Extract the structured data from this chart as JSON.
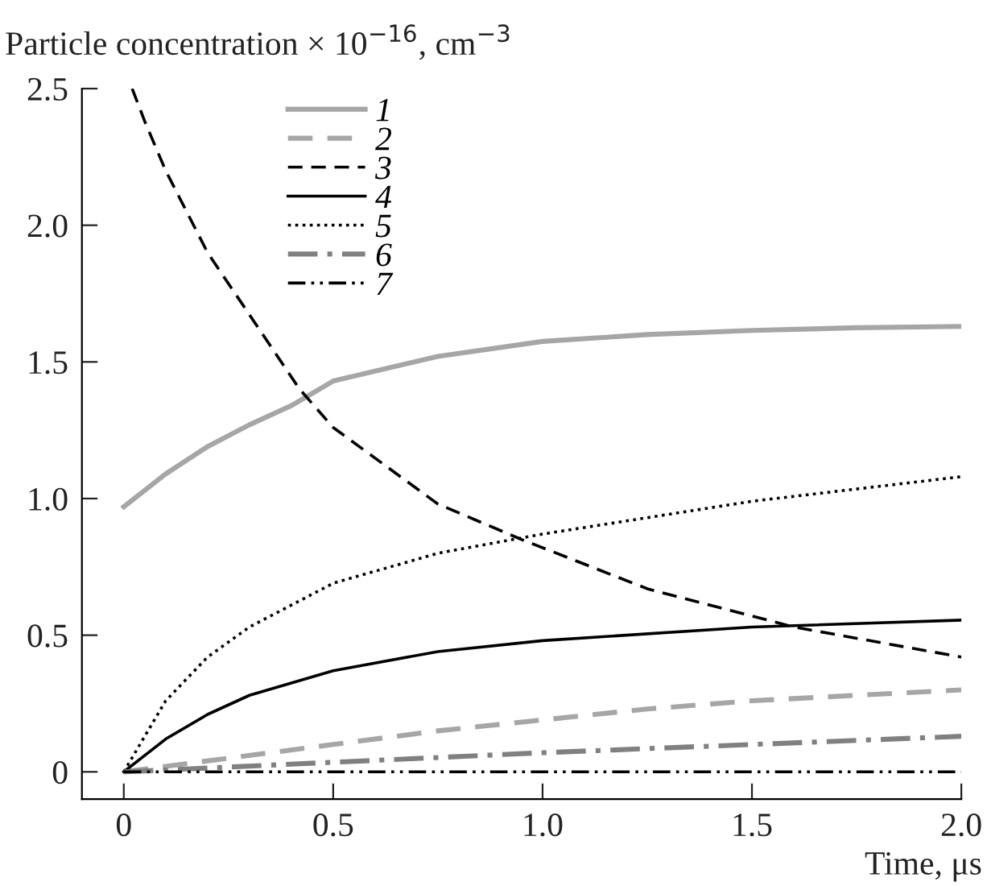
{
  "chart_data": {
    "type": "line",
    "ylabel": "Particle concentration × 10$^{−16}$, cm$^{−3}$",
    "xlabel": "Time, μs",
    "xlim": [
      -0.1,
      2.0
    ],
    "ylim": [
      -0.1,
      2.5
    ],
    "xticks": [
      0,
      0.5,
      {
        "value": 1.0,
        "label": "1.0"
      },
      1.5,
      {
        "value": 2.0,
        "label": "2.0"
      }
    ],
    "yticks": [
      0,
      0.5,
      {
        "value": 1.0,
        "label": "1.0"
      },
      1.5,
      {
        "value": 2.0,
        "label": "2.0"
      },
      2.5
    ],
    "grid": false,
    "legend": "top left",
    "marker": "none",
    "series": [
      {
        "name": "1",
        "color": "#a6a6a6",
        "line_style": "solid",
        "x": [
          0,
          0.1,
          0.2,
          0.3,
          0.4,
          0.5,
          0.75,
          1.0,
          1.25,
          1.5,
          1.75,
          2.0
        ],
        "values": [
          0.97,
          1.09,
          1.19,
          1.27,
          1.34,
          1.43,
          1.52,
          1.575,
          1.6,
          1.615,
          1.625,
          1.63
        ]
      },
      {
        "name": "2",
        "color": "#a6a6a6",
        "line_style": "dashed",
        "x": [
          0,
          0.25,
          0.5,
          0.75,
          1.0,
          1.25,
          1.5,
          1.75,
          2.0
        ],
        "values": [
          0,
          0.05,
          0.1,
          0.15,
          0.19,
          0.23,
          0.26,
          0.28,
          0.3
        ]
      },
      {
        "name": "3",
        "color": "#000000",
        "line_style": "dashed",
        "x": [
          0.02,
          0.05,
          0.1,
          0.2,
          0.31,
          0.42,
          0.5,
          0.75,
          0.95,
          1.25,
          1.6,
          2.0
        ],
        "values": [
          2.5,
          2.38,
          2.2,
          1.9,
          1.65,
          1.4,
          1.26,
          0.98,
          0.85,
          0.67,
          0.53,
          0.42
        ]
      },
      {
        "name": "4",
        "color": "#000000",
        "line_style": "solid",
        "x": [
          0,
          0.1,
          0.2,
          0.3,
          0.5,
          0.75,
          1.0,
          1.5,
          2.0
        ],
        "values": [
          0,
          0.12,
          0.21,
          0.28,
          0.37,
          0.44,
          0.48,
          0.53,
          0.555
        ]
      },
      {
        "name": "5",
        "color": "#000000",
        "line_style": "dotted",
        "x": [
          0,
          0.1,
          0.2,
          0.3,
          0.5,
          0.75,
          1.0,
          1.5,
          2.0
        ],
        "values": [
          0,
          0.26,
          0.42,
          0.53,
          0.69,
          0.8,
          0.87,
          0.99,
          1.08
        ]
      },
      {
        "name": "6",
        "color": "#808080",
        "line_style": "dashdot",
        "x": [
          0,
          0.5,
          1.0,
          1.5,
          2.0
        ],
        "values": [
          0,
          0.035,
          0.07,
          0.1,
          0.13
        ]
      },
      {
        "name": "7",
        "color": "#000000",
        "line_style": "dashdotdot",
        "x": [
          0,
          1.0,
          2.0
        ],
        "values": [
          0,
          0,
          0
        ]
      }
    ]
  }
}
